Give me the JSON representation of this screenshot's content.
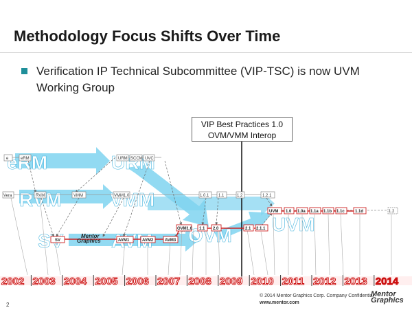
{
  "slide": {
    "title": "Methodology Focus Shifts Over Time",
    "bullet": "Verification IP Technical Subcommittee (VIP-TSC) is now UVM Working Group",
    "callout_line1": "VIP Best Practices 1.0",
    "callout_line2": "OVM/VMM Interop",
    "page_number": "2",
    "footer_copyright": "© 2014 Mentor Graphics Corp.   Company Confidential",
    "footer_url": "www.mentor.com",
    "footer_logo_line1": "Mentor",
    "footer_logo_line2": "Graphics"
  },
  "diagram": {
    "colors": {
      "arrow": "#7fd3f0",
      "arrow_text": "#ffffff",
      "timeline": "#cc1111",
      "red_box": "#cc2222",
      "gray_box": "#888888",
      "gray_line": "#999999"
    },
    "big_labels": {
      "erm": "eRM",
      "urm": "URM",
      "rvm": "RVM",
      "vmm": "VMM",
      "sv": "SV",
      "avm": "AVM",
      "ovm": "OVM",
      "uvm": "UVM"
    },
    "small_boxes": {
      "e": "e",
      "erm": "eRM",
      "urm": "URM",
      "sccm": "SCCM",
      "uvc": "UVC",
      "vera": "Vera",
      "rvm": "RVM",
      "vmm": "VMM",
      "vmm10": "VMM1.0",
      "v101": "1.0.1",
      "v11": "1.1",
      "v12": "1.2",
      "v121": "1.2.1",
      "sv": "SV",
      "avm1": "AVM1",
      "avm2": "AVM2",
      "avm3": "AVM3",
      "ovm10": "OVM1.0",
      "ovm11": "1.1",
      "ovm20": "2.0",
      "ovm21": "2.1",
      "ovm211": "2.1.1",
      "uvm": "UVM",
      "u10": "1.0",
      "u10a": "1.0a",
      "u11a": "1.1a",
      "u11b": "1.1b",
      "u11c": "1.1c",
      "u11d": "1.1d",
      "u12": "1.2"
    },
    "mentor_logo_line1": "Mentor",
    "mentor_logo_line2": "Graphics",
    "years": [
      "2002",
      "2003",
      "2004",
      "2005",
      "2006",
      "2007",
      "2008",
      "2009",
      "2010",
      "2011",
      "2012",
      "2013",
      "2014"
    ]
  }
}
